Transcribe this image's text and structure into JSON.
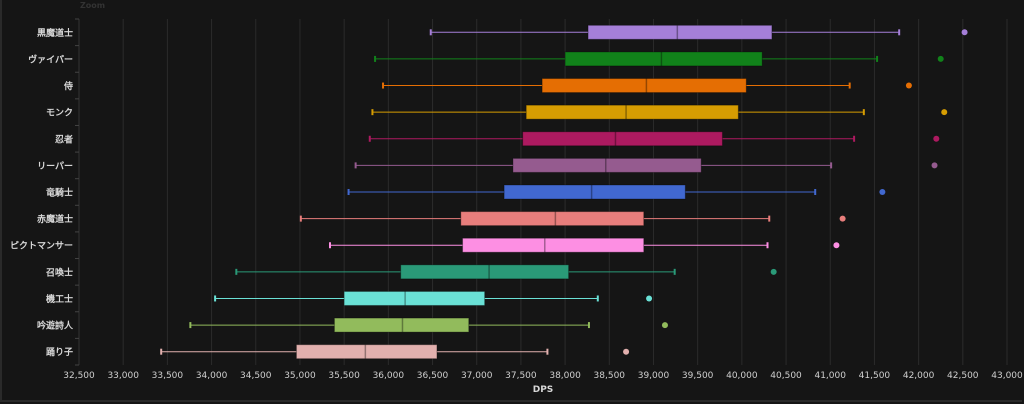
{
  "chart_data": {
    "type": "boxplot",
    "orientation": "horizontal",
    "title": "Zoom",
    "xlabel": "DPS",
    "ylabel": "",
    "xlim": [
      32500,
      43000
    ],
    "xticks": [
      "32,500",
      "33,000",
      "33,500",
      "34,000",
      "34,500",
      "35,000",
      "35,500",
      "36,000",
      "36,500",
      "37,000",
      "37,500",
      "38,000",
      "38,500",
      "39,000",
      "39,500",
      "40,000",
      "40,500",
      "41,000",
      "41,500",
      "42,000",
      "42,500",
      "43,000"
    ],
    "grid": true,
    "categories": [
      "黒魔道士",
      "ヴァイパー",
      "侍",
      "モンク",
      "忍者",
      "リーパー",
      "竜騎士",
      "赤魔道士",
      "ピクトマンサー",
      "召喚士",
      "機工士",
      "吟遊詩人",
      "踊り子"
    ],
    "series": [
      {
        "category": "黒魔道士",
        "color": "#a57fd8",
        "whisker_low": 36480,
        "q1": 38260,
        "median": 39270,
        "q3": 40340,
        "whisker_high": 41780,
        "outliers": [
          42520
        ]
      },
      {
        "category": "ヴァイパー",
        "color": "#11821a",
        "whisker_low": 35850,
        "q1": 38000,
        "median": 39090,
        "q3": 40230,
        "whisker_high": 41530,
        "outliers": [
          42250
        ]
      },
      {
        "category": "侍",
        "color": "#e56e03",
        "whisker_low": 35940,
        "q1": 37740,
        "median": 38920,
        "q3": 40050,
        "whisker_high": 41220,
        "outliers": [
          41890
        ]
      },
      {
        "category": "モンク",
        "color": "#d69d02",
        "whisker_low": 35820,
        "q1": 37560,
        "median": 38690,
        "q3": 39960,
        "whisker_high": 41380,
        "outliers": [
          42290
        ]
      },
      {
        "category": "忍者",
        "color": "#ad1a60",
        "whisker_low": 35790,
        "q1": 37520,
        "median": 38570,
        "q3": 39780,
        "whisker_high": 41270,
        "outliers": [
          42200
        ]
      },
      {
        "category": "リーパー",
        "color": "#955b8f",
        "whisker_low": 35630,
        "q1": 37410,
        "median": 38460,
        "q3": 39540,
        "whisker_high": 41010,
        "outliers": [
          42180
        ]
      },
      {
        "category": "竜騎士",
        "color": "#4168d0",
        "whisker_low": 35550,
        "q1": 37310,
        "median": 38300,
        "q3": 39360,
        "whisker_high": 40830,
        "outliers": [
          41590
        ]
      },
      {
        "category": "赤魔道士",
        "color": "#e87e7c",
        "whisker_low": 35010,
        "q1": 36820,
        "median": 37890,
        "q3": 38890,
        "whisker_high": 40310,
        "outliers": [
          41140
        ]
      },
      {
        "category": "ピクトマンサー",
        "color": "#fd8fe3",
        "whisker_low": 35340,
        "q1": 36840,
        "median": 37770,
        "q3": 38890,
        "whisker_high": 40290,
        "outliers": [
          41070
        ]
      },
      {
        "category": "召喚士",
        "color": "#2a9a78",
        "whisker_low": 34280,
        "q1": 36140,
        "median": 37140,
        "q3": 38040,
        "whisker_high": 39240,
        "outliers": [
          40360
        ]
      },
      {
        "category": "機工士",
        "color": "#6ae1d6",
        "whisker_low": 34040,
        "q1": 35500,
        "median": 36190,
        "q3": 37090,
        "whisker_high": 38370,
        "outliers": [
          38950
        ]
      },
      {
        "category": "吟遊詩人",
        "color": "#92bb5c",
        "whisker_low": 33760,
        "q1": 35390,
        "median": 36160,
        "q3": 36910,
        "whisker_high": 38270,
        "outliers": [
          39130
        ]
      },
      {
        "category": "踊り子",
        "color": "#e2b0ae",
        "whisker_low": 33430,
        "q1": 34960,
        "median": 35740,
        "q3": 36550,
        "whisker_high": 37800,
        "outliers": [
          38690
        ]
      }
    ]
  }
}
